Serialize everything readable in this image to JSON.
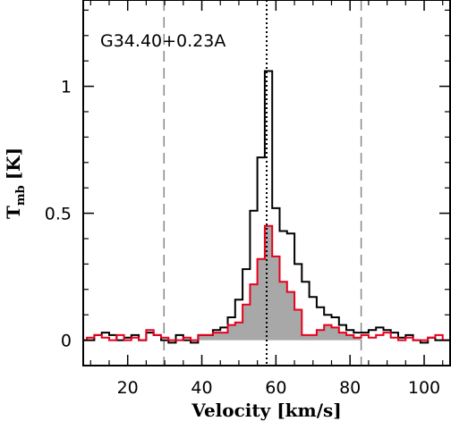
{
  "chart_data": {
    "type": "line",
    "annotation": "G34.40+0.23A",
    "xlabel": "Velocity [km/s]",
    "ylabel_main": "T",
    "ylabel_sub": "mb",
    "ylabel_unit": "[K]",
    "xlim": [
      8,
      107
    ],
    "ylim": [
      -0.1,
      1.34
    ],
    "x_ticks": [
      20,
      40,
      60,
      80,
      100
    ],
    "x_tick_labels": [
      "20",
      "40",
      "60",
      "80",
      "100"
    ],
    "y_ticks": [
      0,
      0.5,
      1
    ],
    "y_tick_labels": [
      "0",
      "0.5",
      "1"
    ],
    "grid": false,
    "vlines_dashed": [
      29.8,
      83.0
    ],
    "vline_dotted": 57.5,
    "series": [
      {
        "style": "black-step",
        "color": "#000000",
        "x": [
          8,
          10,
          12,
          14,
          16,
          18,
          20,
          22,
          24,
          26,
          28,
          30,
          32,
          34,
          36,
          38,
          40,
          42,
          44,
          46,
          48,
          50,
          52,
          54,
          56,
          58,
          60,
          62,
          64,
          66,
          68,
          70,
          72,
          74,
          76,
          78,
          80,
          82,
          84,
          86,
          88,
          90,
          92,
          94,
          96,
          98,
          100,
          102,
          104,
          106
        ],
        "y": [
          0.0,
          0.0,
          0.02,
          0.03,
          0.02,
          0.0,
          0.01,
          0.02,
          0.0,
          0.03,
          0.02,
          0.0,
          -0.01,
          0.02,
          0.0,
          -0.01,
          0.02,
          0.02,
          0.04,
          0.05,
          0.09,
          0.16,
          0.28,
          0.51,
          0.72,
          1.06,
          0.52,
          0.43,
          0.42,
          0.3,
          0.23,
          0.17,
          0.13,
          0.1,
          0.09,
          0.06,
          0.04,
          0.03,
          0.03,
          0.04,
          0.05,
          0.04,
          0.03,
          0.01,
          0.02,
          0.0,
          -0.01,
          0.01,
          0.0,
          0.0
        ]
      },
      {
        "style": "red-step-filled",
        "color": "#e8001c",
        "fill": "#a8a8a8",
        "fill_range": [
          38,
          82
        ],
        "x": [
          8,
          10,
          12,
          14,
          16,
          18,
          20,
          22,
          24,
          26,
          28,
          30,
          32,
          34,
          36,
          38,
          40,
          42,
          44,
          46,
          48,
          50,
          52,
          54,
          56,
          58,
          60,
          62,
          64,
          66,
          68,
          70,
          72,
          74,
          76,
          78,
          80,
          82,
          84,
          86,
          88,
          90,
          92,
          94,
          96,
          98,
          100,
          102,
          104,
          106
        ],
        "y": [
          0.0,
          0.01,
          0.02,
          0.01,
          0.0,
          0.02,
          0.0,
          0.01,
          0.0,
          0.04,
          0.02,
          0.01,
          0.0,
          0.0,
          0.01,
          0.0,
          0.02,
          0.02,
          0.03,
          0.03,
          0.06,
          0.07,
          0.14,
          0.22,
          0.32,
          0.45,
          0.33,
          0.23,
          0.19,
          0.12,
          0.02,
          0.02,
          0.04,
          0.06,
          0.05,
          0.03,
          0.02,
          0.01,
          0.02,
          0.01,
          0.02,
          0.03,
          0.01,
          0.0,
          0.01,
          0.0,
          0.0,
          0.01,
          0.02,
          0.0
        ]
      }
    ]
  }
}
